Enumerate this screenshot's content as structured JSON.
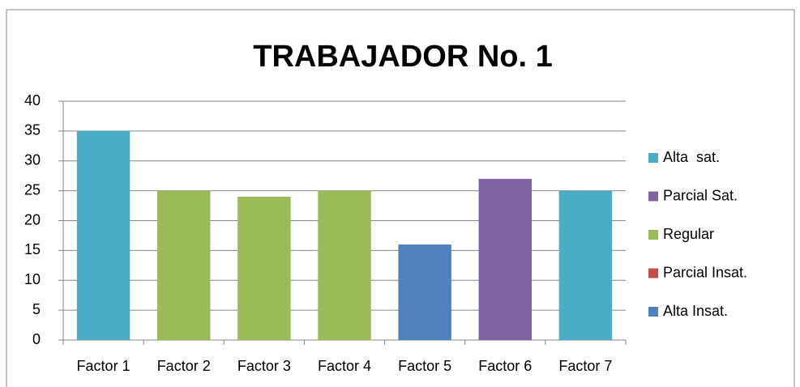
{
  "chart_data": {
    "type": "bar",
    "title": "TRABAJADOR No. 1",
    "categories": [
      "Factor 1",
      "Factor 2",
      "Factor 3",
      "Factor 4",
      "Factor 5",
      "Factor 6",
      "Factor 7"
    ],
    "series": [
      {
        "name": "Alta  sat.",
        "color": "#4bacc6",
        "values": [
          35,
          null,
          null,
          null,
          null,
          null,
          25
        ]
      },
      {
        "name": "Parcial Sat.",
        "color": "#8064a2",
        "values": [
          null,
          null,
          null,
          null,
          null,
          27,
          null
        ]
      },
      {
        "name": "Regular",
        "color": "#9bbb59",
        "values": [
          null,
          25,
          24,
          25,
          null,
          null,
          null
        ]
      },
      {
        "name": "Parcial Insat.",
        "color": "#c0504d",
        "values": [
          null,
          null,
          null,
          null,
          null,
          null,
          null
        ]
      },
      {
        "name": "Alta Insat.",
        "color": "#4f81bd",
        "values": [
          null,
          null,
          null,
          null,
          16,
          null,
          null
        ]
      }
    ],
    "ylim": [
      0,
      40
    ],
    "yticks": [
      0,
      5,
      10,
      15,
      20,
      25,
      30,
      35,
      40
    ],
    "grid": true,
    "legend": "right"
  }
}
